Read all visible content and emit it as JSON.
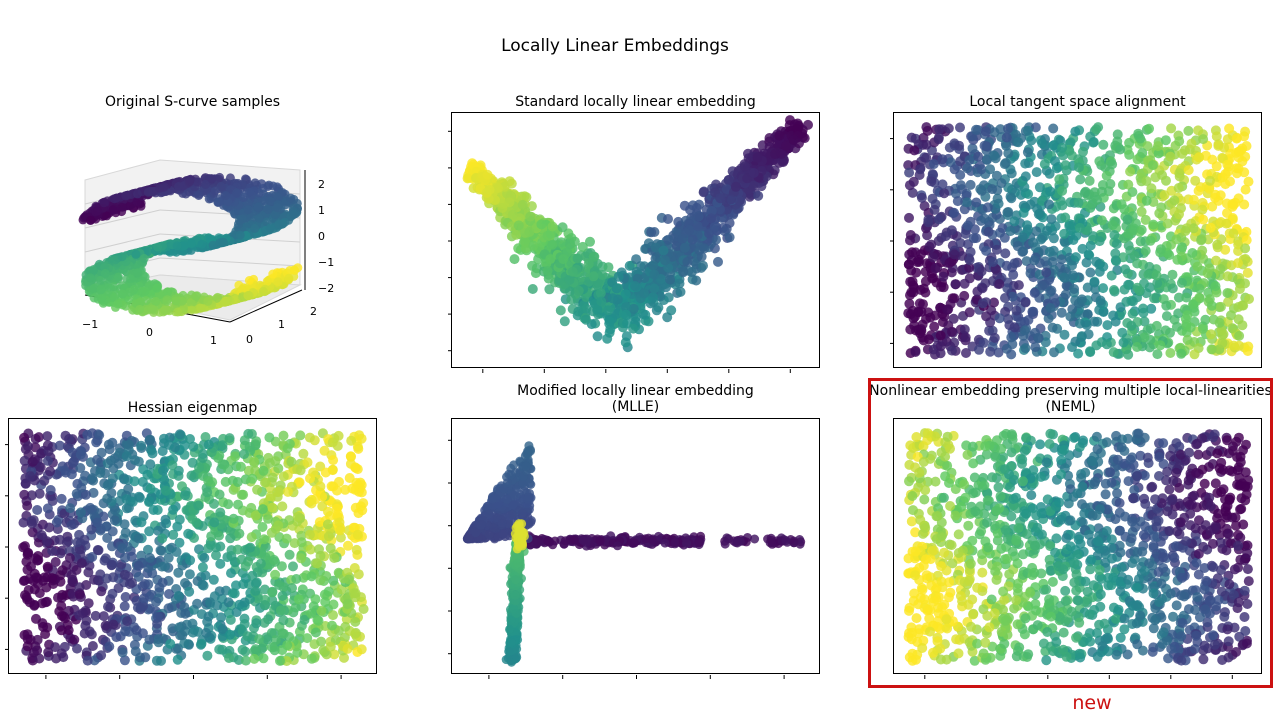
{
  "figure": {
    "suptitle": "Locally Linear Embeddings",
    "highlight_label": "new",
    "colormap": [
      "#440154",
      "#3b528b",
      "#21918c",
      "#5ec962",
      "#fde725"
    ],
    "highlight_color": "#cc1111"
  },
  "chart_data": [
    {
      "id": "scurve",
      "type": "scatter3d",
      "title": "Original S-curve samples",
      "x_ticks": [
        "−1",
        "0",
        "1"
      ],
      "y_ticks": [
        "0",
        "1",
        "2"
      ],
      "z_ticks": [
        "2",
        "1",
        "0",
        "−1",
        "−2"
      ],
      "xlim": [
        -1,
        1
      ],
      "ylim": [
        0,
        2
      ],
      "zlim": [
        -2,
        2
      ]
    },
    {
      "id": "lle",
      "type": "scatter",
      "title": "Standard locally linear embedding",
      "shape": "v-curve",
      "x_ticks_count": 6,
      "y_ticks_count": 7
    },
    {
      "id": "ltsa",
      "type": "scatter",
      "title": "Local tangent space alignment",
      "shape": "rectangle",
      "color_direction": "left-to-right increasing",
      "x_ticks_count": 0,
      "y_ticks_count": 5
    },
    {
      "id": "hessian",
      "type": "scatter",
      "title": "Hessian eigenmap",
      "shape": "rectangle",
      "color_direction": "left-to-right increasing",
      "x_ticks_count": 5,
      "y_ticks_count": 5
    },
    {
      "id": "mlle",
      "type": "scatter",
      "title_line1": "Modified locally linear embedding",
      "title_line2": "(MLLE)",
      "shape": "spike",
      "x_ticks_count": 5,
      "y_ticks_count": 6
    },
    {
      "id": "neml",
      "type": "scatter",
      "title_line1": "Nonlinear embedding preserving multiple local-linearities",
      "title_line2": "(NEML)",
      "shape": "rectangle",
      "color_direction": "left-to-right decreasing",
      "x_ticks_count": 6,
      "y_ticks_count": 0
    }
  ]
}
